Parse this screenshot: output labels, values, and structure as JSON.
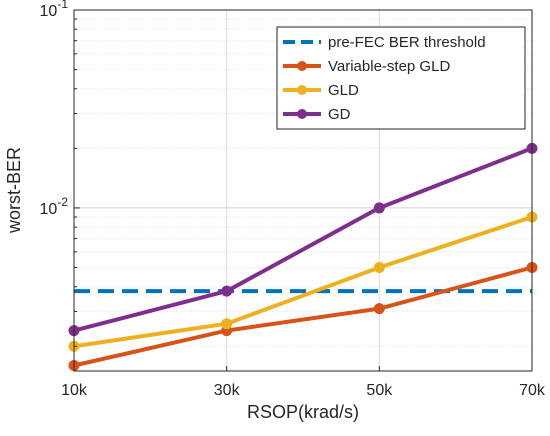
{
  "chart_data": {
    "type": "line",
    "xlabel": "RSOP(krad/s)",
    "ylabel": "worst-BER",
    "x": [
      10,
      30,
      50,
      70
    ],
    "x_tick_labels": [
      "10k",
      "30k",
      "50k",
      "70k"
    ],
    "xlim": [
      10,
      70
    ],
    "yscale": "log",
    "ylim": [
      0.0015,
      0.1
    ],
    "y_major_ticks": [
      {
        "value": 0.01,
        "base": "10",
        "exp": "-2"
      },
      {
        "value": 0.1,
        "base": "10",
        "exp": "-1"
      }
    ],
    "grid": true,
    "legend_position": "top-right",
    "threshold": {
      "name": "pre-FEC BER threshold",
      "value": 0.0038,
      "color": "#0072BD",
      "style": "dashed"
    },
    "series": [
      {
        "name": "Variable-step GLD",
        "color": "#D95319",
        "values": [
          0.0016,
          0.0024,
          0.0031,
          0.005
        ]
      },
      {
        "name": "GLD",
        "color": "#EDB120",
        "values": [
          0.002,
          0.0026,
          0.005,
          0.009
        ]
      },
      {
        "name": "GD",
        "color": "#7E2F8E",
        "values": [
          0.0024,
          0.0038,
          0.01,
          0.02
        ]
      }
    ]
  }
}
